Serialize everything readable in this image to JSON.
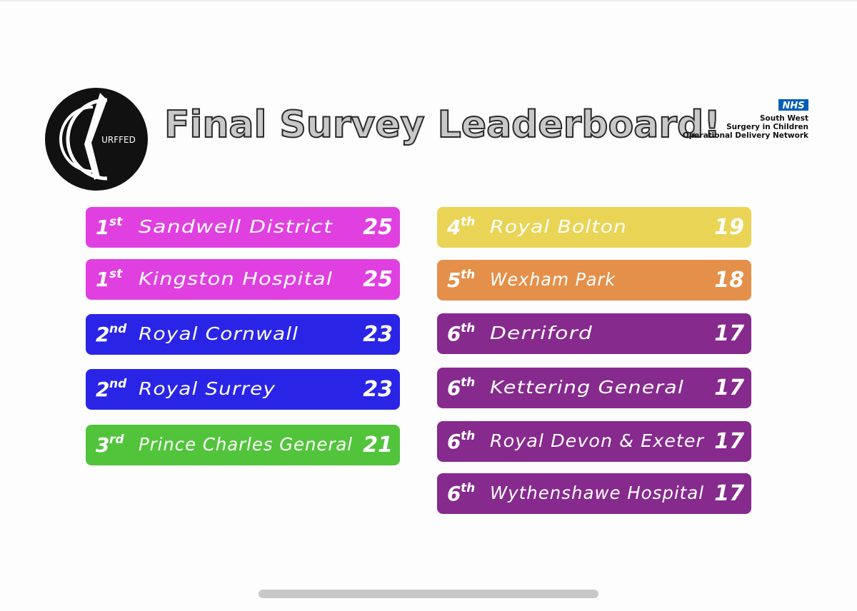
{
  "header": {
    "title": "Final Survey Leaderboard!",
    "logo_text": "URFFED",
    "nhs": {
      "badge": "NHS",
      "lines": [
        "South West",
        "Surgery in Children",
        "Operational Delivery Network"
      ]
    }
  },
  "leaderboard": {
    "left": [
      {
        "rank": "1",
        "suffix": "st",
        "name": "Sandwell District",
        "score": "25",
        "color": "#e040e0"
      },
      {
        "rank": "1",
        "suffix": "st",
        "name": "Kingston Hospital",
        "score": "25",
        "color": "#e040e0"
      },
      {
        "rank": "2",
        "suffix": "nd",
        "name": "Royal Cornwall",
        "score": "23",
        "color": "#2a25e6"
      },
      {
        "rank": "2",
        "suffix": "nd",
        "name": "Royal Surrey",
        "score": "23",
        "color": "#2a25e6"
      },
      {
        "rank": "3",
        "suffix": "rd",
        "name": "Prince Charles General",
        "score": "21",
        "color": "#52c43c"
      }
    ],
    "right": [
      {
        "rank": "4",
        "suffix": "th",
        "name": "Royal Bolton",
        "score": "19",
        "color": "#ead455"
      },
      {
        "rank": "5",
        "suffix": "th",
        "name": "Wexham Park",
        "score": "18",
        "color": "#e4904a"
      },
      {
        "rank": "6",
        "suffix": "th",
        "name": "Derriford",
        "score": "17",
        "color": "#862a8e"
      },
      {
        "rank": "6",
        "suffix": "th",
        "name": "Kettering General",
        "score": "17",
        "color": "#862a8e"
      },
      {
        "rank": "6",
        "suffix": "th",
        "name": "Royal Devon & Exeter",
        "score": "17",
        "color": "#862a8e"
      },
      {
        "rank": "6",
        "suffix": "th",
        "name": "Wythenshawe Hospital",
        "score": "17",
        "color": "#862a8e"
      }
    ]
  }
}
